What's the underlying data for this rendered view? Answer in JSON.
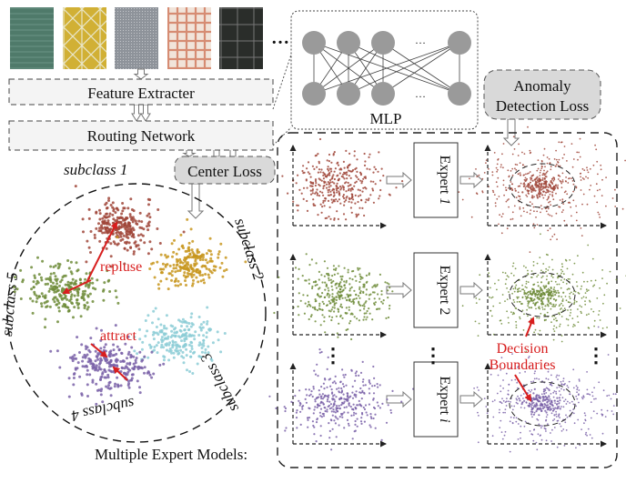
{
  "feature_extractor": {
    "label": "Feature Extracter"
  },
  "routing_network": {
    "label": "Routing Network"
  },
  "mlp": {
    "label": "MLP",
    "ellipsis": "…"
  },
  "textures": {
    "ellipsis": "…"
  },
  "center_loss": {
    "label": "Center Loss"
  },
  "anomaly_loss": {
    "line1": "Anomaly",
    "line2": "Detection Loss"
  },
  "subclasses": {
    "s1": "subclass 1",
    "s2": "subclass 2",
    "s3": "subclass 3",
    "s4": "subclass 4",
    "s5": "subclass 5"
  },
  "annotations": {
    "repluse": "repluse",
    "attract": "attract",
    "decision1": "Decision",
    "decision2": "Boundaries"
  },
  "experts": {
    "e1": {
      "word": "Expert",
      "id": "1"
    },
    "e2": {
      "word": "Expert",
      "id": "2"
    },
    "e3": {
      "word": "Expert",
      "id": "i"
    },
    "ellipsis": "⋮"
  },
  "footer": {
    "label": "Multiple Expert Models:"
  },
  "colors": {
    "red": "#a0463a",
    "orange": "#c8961e",
    "green": "#6e8c3a",
    "cyan": "#8ccdd6",
    "purple": "#7a62a8",
    "annotation": "#d81e1e"
  },
  "icons": [
    "fabric-texture",
    "neural-network-node",
    "hollow-arrow",
    "scatter-plot",
    "cluster"
  ]
}
